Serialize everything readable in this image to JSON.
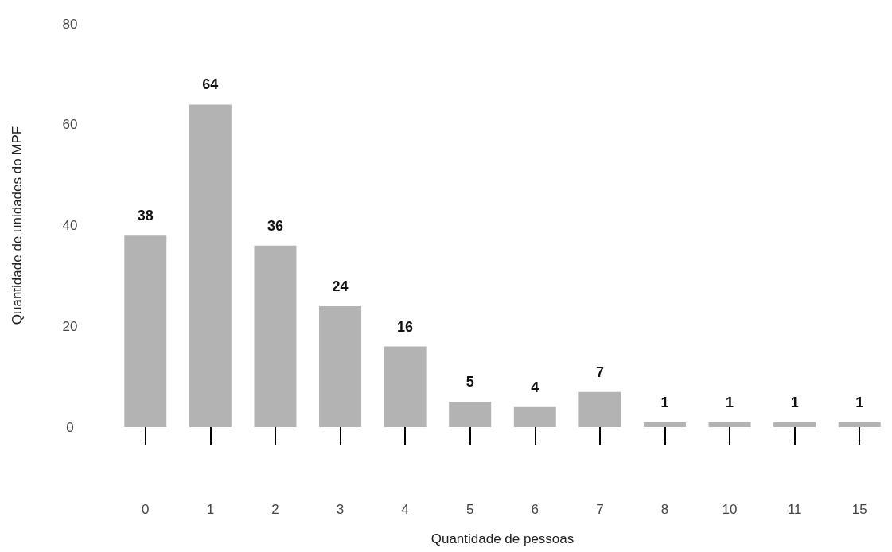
{
  "chart_data": {
    "type": "bar",
    "xlabel": "Quantidade de pessoas",
    "ylabel": "Quantidade de unidades do MPF",
    "categories": [
      "0",
      "1",
      "2",
      "3",
      "4",
      "5",
      "6",
      "7",
      "8",
      "10",
      "11",
      "15"
    ],
    "values": [
      38,
      64,
      36,
      24,
      16,
      5,
      4,
      7,
      1,
      1,
      1,
      1
    ],
    "color": "#b3b3b3",
    "ylim": [
      0,
      80
    ],
    "yticks": [
      0,
      20,
      40,
      60,
      80
    ],
    "grid": false,
    "data_labels": true
  }
}
